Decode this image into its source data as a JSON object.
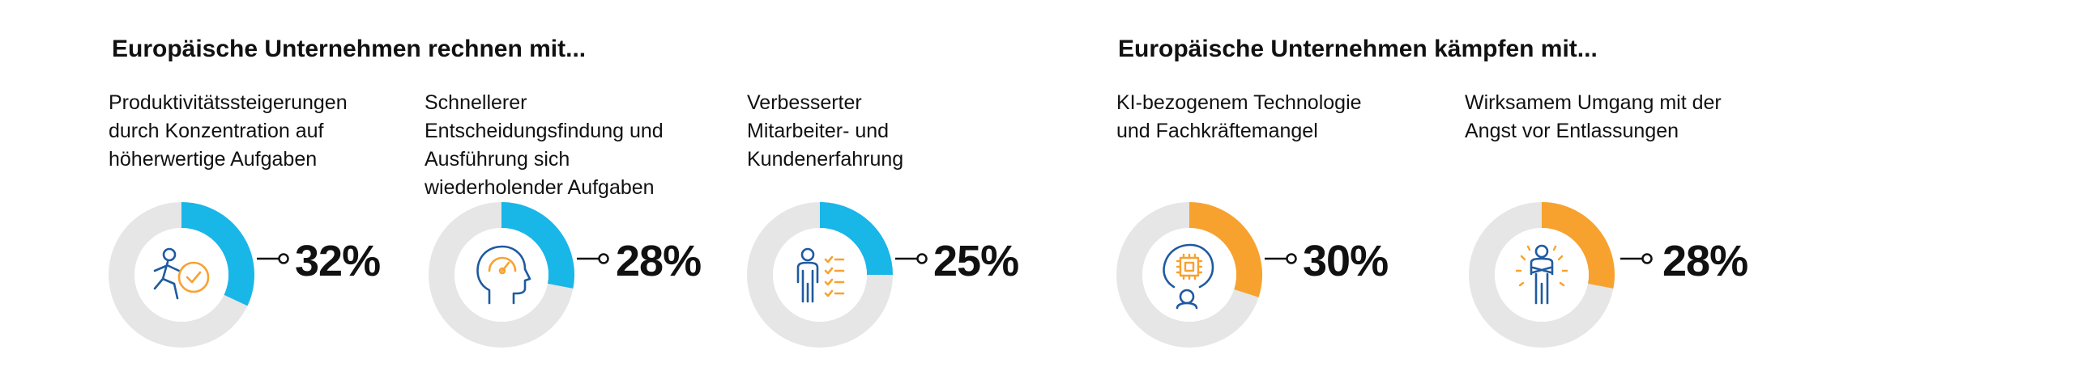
{
  "colors": {
    "blue": "#19b6e8",
    "orange": "#f7a22f",
    "track": "#e6e6e6",
    "icon_blue": "#1f5aa0"
  },
  "sections": [
    {
      "title": "Europäische Unternehmen rechnen mit...",
      "items": [
        {
          "label": "Produktivitätssteigerungen\ndurch Konzentration auf\nhöherwertige Aufgaben",
          "value": 32,
          "value_text": "32%",
          "color": "blue",
          "icon": "running-person-clock-icon"
        },
        {
          "label": "Schnellerer\nEntscheidungsfindung und\nAusführung sich\nwiederholender Aufgaben",
          "value": 28,
          "value_text": "28%",
          "color": "blue",
          "icon": "head-gauge-icon"
        },
        {
          "label": "Verbesserter\nMitarbeiter- und\nKundenerfahrung",
          "value": 25,
          "value_text": "25%",
          "color": "blue",
          "icon": "person-checklist-icon"
        }
      ]
    },
    {
      "title": "Europäische Unternehmen kämpfen mit...",
      "items": [
        {
          "label": "KI-bezogenem Technologie\nund Fachkräftemangel",
          "value": 30,
          "value_text": "30%",
          "color": "orange",
          "icon": "head-chip-icon"
        },
        {
          "label": "Wirksamem Umgang mit der\nAngst vor Entlassungen",
          "value": 28,
          "value_text": "28%",
          "color": "orange",
          "icon": "anxious-person-icon"
        }
      ]
    }
  ],
  "chart_data": {
    "type": "pie",
    "subtype": "donut",
    "groups": [
      {
        "title": "Europäische Unternehmen rechnen mit...",
        "categories": [
          "Produktivitätssteigerungen durch Konzentration auf höherwertige Aufgaben",
          "Schnellerer Entscheidungsfindung und Ausführung sich wiederholender Aufgaben",
          "Verbesserter Mitarbeiter- und Kundenerfahrung"
        ],
        "values": [
          32,
          28,
          25
        ],
        "unit": "%"
      },
      {
        "title": "Europäische Unternehmen kämpfen mit...",
        "categories": [
          "KI-bezogenem Technologie und Fachkräftemangel",
          "Wirksamem Umgang mit der Angst vor Entlassungen"
        ],
        "values": [
          30,
          28
        ],
        "unit": "%"
      }
    ]
  }
}
